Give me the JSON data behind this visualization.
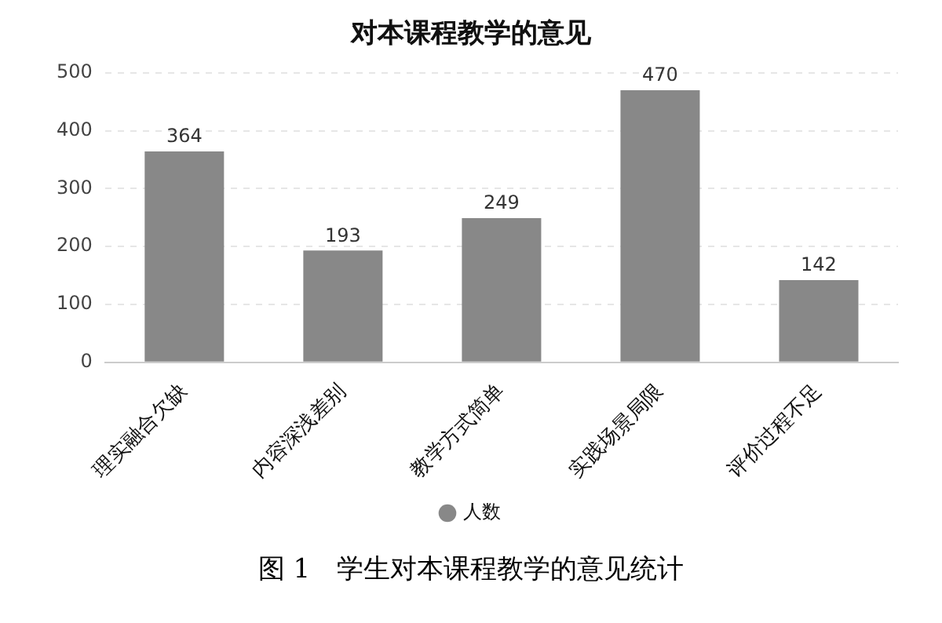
{
  "chart_data": {
    "type": "bar",
    "title": "对本课程教学的意见",
    "categories": [
      "理实融合欠缺",
      "内容深浅差别",
      "教学方式简单",
      "实践场景局限",
      "评价过程不足"
    ],
    "series": [
      {
        "name": "人数",
        "color": "#888888",
        "values": [
          364,
          193,
          249,
          470,
          142
        ]
      }
    ],
    "ylim": [
      0,
      500
    ],
    "yticks": [
      0,
      100,
      200,
      300,
      400,
      500
    ],
    "grid": "y",
    "legend": "bottom",
    "data_labels": true,
    "annotations": [
      "图 1　学生对本课程教学的意见统计"
    ]
  }
}
